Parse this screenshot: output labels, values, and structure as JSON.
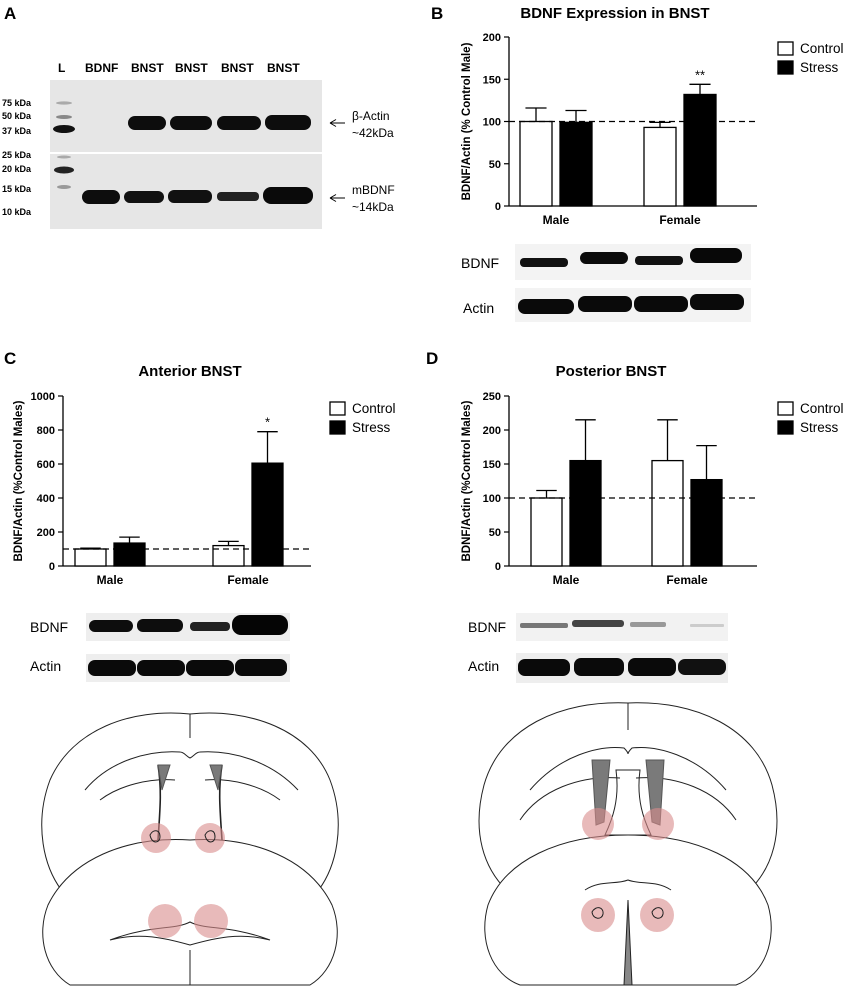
{
  "panel_a": {
    "label": "A",
    "lanes": [
      "L",
      "BDNF",
      "BNST",
      "BNST",
      "BNST",
      "BNST"
    ],
    "ladder": [
      "75 kDa",
      "50 kDa",
      "37 kDa",
      "25 kDa",
      "20 kDa",
      "15 kDa",
      "10 kDa"
    ],
    "annot_actin": [
      "β-Actin",
      "~42kDa"
    ],
    "annot_bdnf": [
      "mBDNF",
      "~14kDa"
    ]
  },
  "panel_b": {
    "label": "B",
    "blot_labels": [
      "BDNF",
      "Actin"
    ]
  },
  "panel_c": {
    "label": "C",
    "blot_labels": [
      "BDNF",
      "Actin"
    ]
  },
  "panel_d": {
    "label": "D",
    "blot_labels": [
      "BDNF",
      "Actin"
    ]
  },
  "legend": {
    "control": "Control",
    "stress": "Stress"
  },
  "colors": {
    "control": "#ffffff",
    "stress": "#000000",
    "roi": "#d98c8c",
    "ventricle": "#7a7a7a"
  },
  "chart_data": [
    {
      "id": "B",
      "type": "bar",
      "title": "BDNF Expression in BNST",
      "xlabel": "",
      "ylabel": "BDNF/Actin (% Control Male)",
      "categories": [
        "Male",
        "Female"
      ],
      "ylim": [
        0,
        200
      ],
      "yticks": [
        0,
        50,
        100,
        150,
        200
      ],
      "reference_line": 100,
      "series": [
        {
          "name": "Control",
          "values": [
            100,
            93
          ],
          "errors": [
            16,
            6
          ]
        },
        {
          "name": "Stress",
          "values": [
            99,
            132
          ],
          "errors": [
            14,
            12
          ]
        }
      ],
      "annotations": [
        {
          "text": "**",
          "category": "Female",
          "series": "Stress"
        }
      ]
    },
    {
      "id": "C",
      "type": "bar",
      "title": "Anterior BNST",
      "xlabel": "",
      "ylabel": "BDNF/Actin (%Control Males)",
      "categories": [
        "Male",
        "Female"
      ],
      "ylim": [
        0,
        1000
      ],
      "yticks": [
        0,
        200,
        400,
        600,
        800,
        1000
      ],
      "reference_line": 100,
      "series": [
        {
          "name": "Control",
          "values": [
            100,
            120
          ],
          "errors": [
            5,
            25
          ]
        },
        {
          "name": "Stress",
          "values": [
            135,
            605
          ],
          "errors": [
            35,
            185
          ]
        }
      ],
      "annotations": [
        {
          "text": "*",
          "category": "Female",
          "series": "Stress"
        }
      ]
    },
    {
      "id": "D",
      "type": "bar",
      "title": "Posterior BNST",
      "xlabel": "",
      "ylabel": "BDNF/Actin (%Control Males)",
      "categories": [
        "Male",
        "Female"
      ],
      "ylim": [
        0,
        250
      ],
      "yticks": [
        0,
        50,
        100,
        150,
        200,
        250
      ],
      "reference_line": 100,
      "series": [
        {
          "name": "Control",
          "values": [
            100,
            155
          ],
          "errors": [
            11,
            60
          ]
        },
        {
          "name": "Stress",
          "values": [
            155,
            127
          ],
          "errors": [
            60,
            50
          ]
        }
      ],
      "annotations": []
    }
  ]
}
